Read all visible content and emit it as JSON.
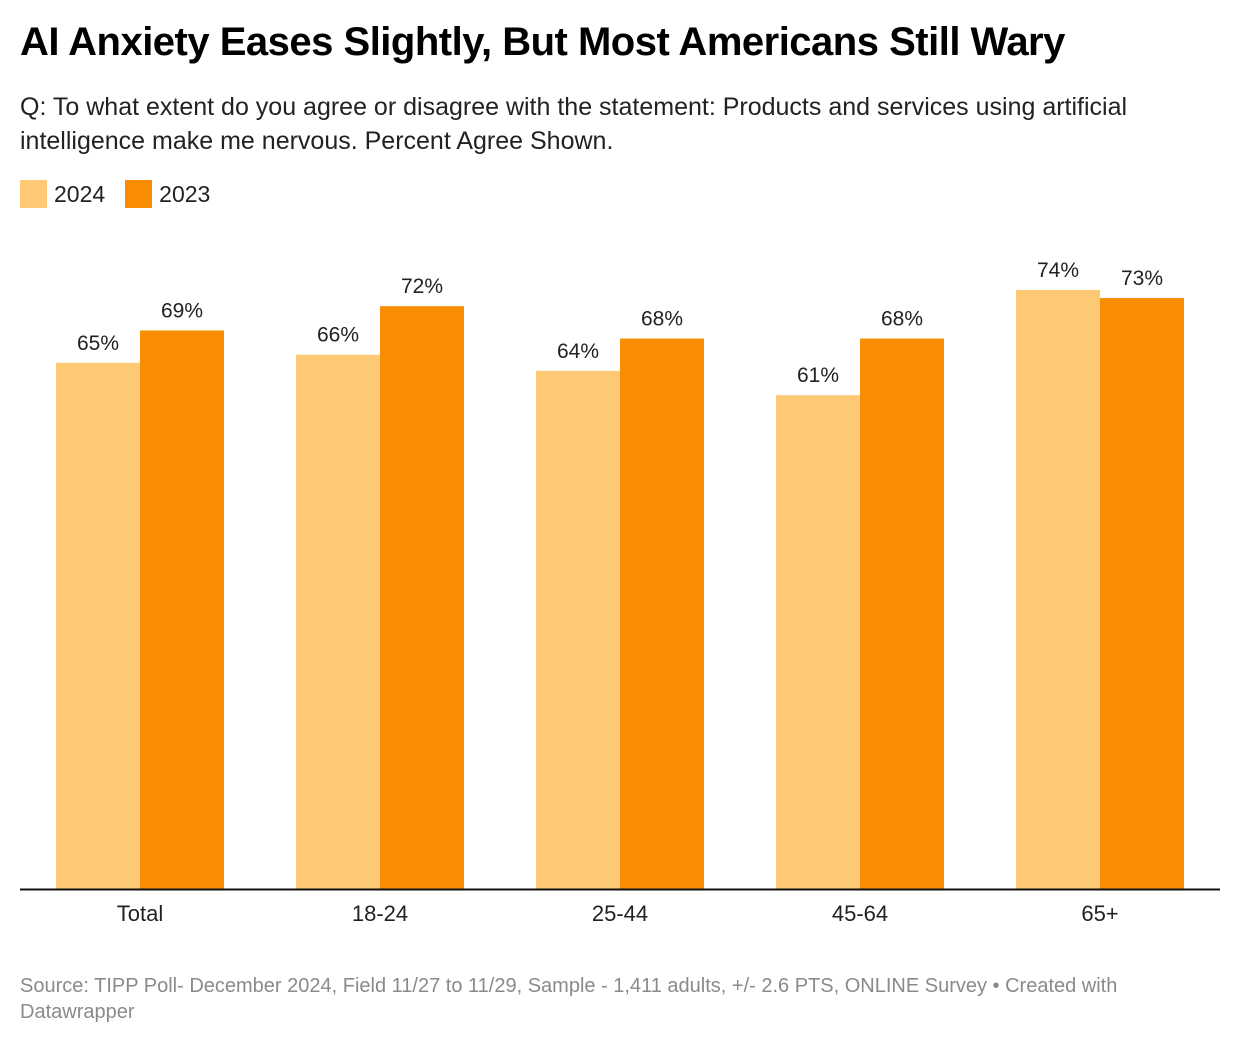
{
  "header": {
    "title": "AI Anxiety Eases Slightly, But Most Americans Still Wary",
    "subtitle": "Q: To what extent do you agree or disagree with the statement: Products and services using artificial intelligence make me nervous. Percent Agree Shown."
  },
  "legend": [
    {
      "label": "2024",
      "color": "#fdc975"
    },
    {
      "label": "2023",
      "color": "#f88d03"
    }
  ],
  "footer": {
    "source": "Source: TIPP Poll- December 2024, Field 11/27 to 11/29, Sample - 1,411 adults, +/- 2.6 PTS, ONLINE Survey • Created with Datawrapper"
  },
  "chart_data": {
    "type": "bar",
    "title": "AI Anxiety Eases Slightly, But Most Americans Still Wary",
    "xlabel": "",
    "ylabel": "Percent Agree",
    "categories": [
      "Total",
      "18-24",
      "25-44",
      "45-64",
      "65+"
    ],
    "series": [
      {
        "name": "2024",
        "color": "#fdc975",
        "values": [
          65,
          66,
          64,
          61,
          74
        ]
      },
      {
        "name": "2023",
        "color": "#f88d03",
        "values": [
          69,
          72,
          68,
          68,
          73
        ]
      }
    ],
    "value_suffix": "%",
    "ylim": [
      0,
      74
    ],
    "grid": false,
    "legend_position": "top-left"
  }
}
